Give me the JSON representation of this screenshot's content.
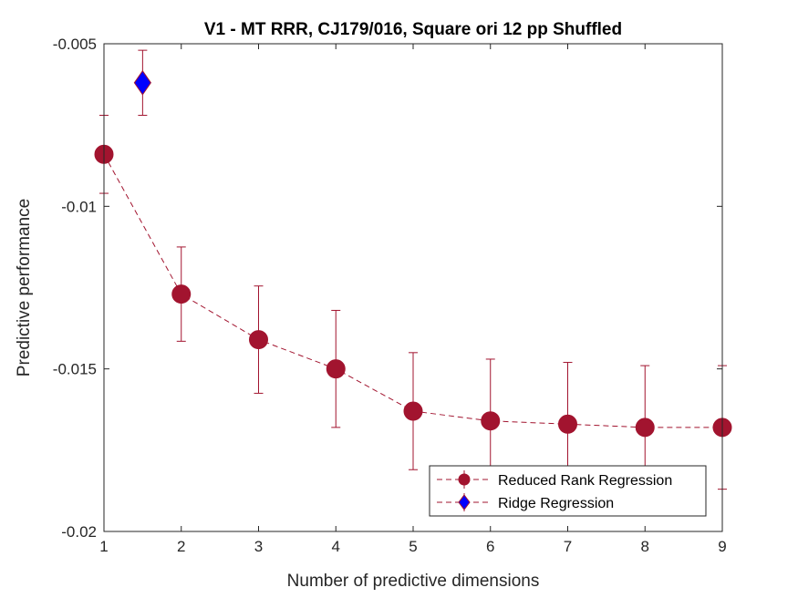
{
  "chart_data": {
    "type": "line",
    "title": "V1 - MT RRR, CJ179/016, Square ori 12 pp Shuffled",
    "xlabel": "Number of predictive dimensions",
    "ylabel": "Predictive performance",
    "xlim": [
      1,
      9
    ],
    "ylim": [
      -0.02,
      -0.005
    ],
    "xticks": [
      1,
      2,
      3,
      4,
      5,
      6,
      7,
      8,
      9
    ],
    "xtick_labels": [
      "1",
      "2",
      "3",
      "4",
      "5",
      "6",
      "7",
      "8",
      "9"
    ],
    "yticks": [
      -0.02,
      -0.015,
      -0.01,
      -0.005
    ],
    "ytick_labels": [
      "-0.02",
      "-0.015",
      "-0.01",
      "-0.005"
    ],
    "grid": false,
    "legend_position": "bottom-right",
    "series": [
      {
        "name": "Reduced Rank Regression",
        "marker": "circle",
        "line": "dashed",
        "color": "#A2142F",
        "x": [
          1,
          2,
          3,
          4,
          5,
          6,
          7,
          8,
          9
        ],
        "y": [
          -0.0084,
          -0.0127,
          -0.0141,
          -0.015,
          -0.0163,
          -0.0166,
          -0.0167,
          -0.0168,
          -0.0168
        ],
        "err": [
          0.0012,
          0.00145,
          0.00165,
          0.0018,
          0.0018,
          0.0019,
          0.0019,
          0.0019,
          0.0019
        ]
      },
      {
        "name": "Ridge Regression",
        "marker": "diamond",
        "line": "none",
        "color": "#0000FF",
        "edge_color": "#A2142F",
        "x": [
          1.5
        ],
        "y": [
          -0.0062
        ],
        "err": [
          0.001
        ]
      }
    ]
  }
}
